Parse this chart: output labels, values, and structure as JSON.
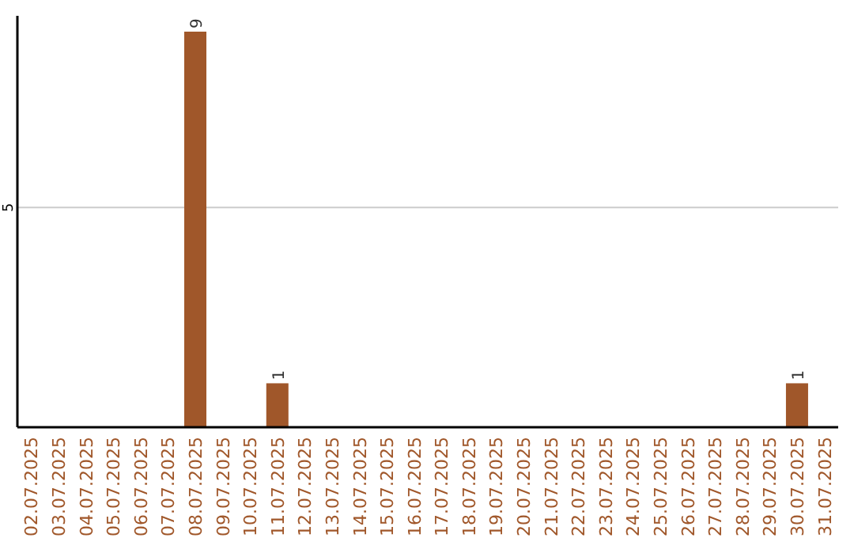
{
  "chart_data": {
    "type": "bar",
    "categories": [
      "02.07.2025",
      "03.07.2025",
      "04.07.2025",
      "05.07.2025",
      "06.07.2025",
      "07.07.2025",
      "08.07.2025",
      "09.07.2025",
      "10.07.2025",
      "11.07.2025",
      "12.07.2025",
      "13.07.2025",
      "14.07.2025",
      "15.07.2025",
      "16.07.2025",
      "17.07.2025",
      "18.07.2025",
      "19.07.2025",
      "20.07.2025",
      "21.07.2025",
      "22.07.2025",
      "23.07.2025",
      "24.07.2025",
      "25.07.2025",
      "26.07.2025",
      "27.07.2025",
      "28.07.2025",
      "29.07.2025",
      "30.07.2025",
      "31.07.2025"
    ],
    "values": [
      0,
      0,
      0,
      0,
      0,
      0,
      9,
      0,
      0,
      1,
      0,
      0,
      0,
      0,
      0,
      0,
      0,
      0,
      0,
      0,
      0,
      0,
      0,
      0,
      0,
      0,
      0,
      0,
      1,
      0
    ],
    "value_labels": [
      null,
      null,
      null,
      null,
      null,
      null,
      "9",
      null,
      null,
      "1",
      null,
      null,
      null,
      null,
      null,
      null,
      null,
      null,
      null,
      null,
      null,
      null,
      null,
      null,
      null,
      null,
      null,
      null,
      "1",
      null
    ],
    "color": "#a0572a",
    "ylim": [
      0,
      9.36
    ],
    "yticks": [
      5
    ],
    "grid": "y"
  }
}
